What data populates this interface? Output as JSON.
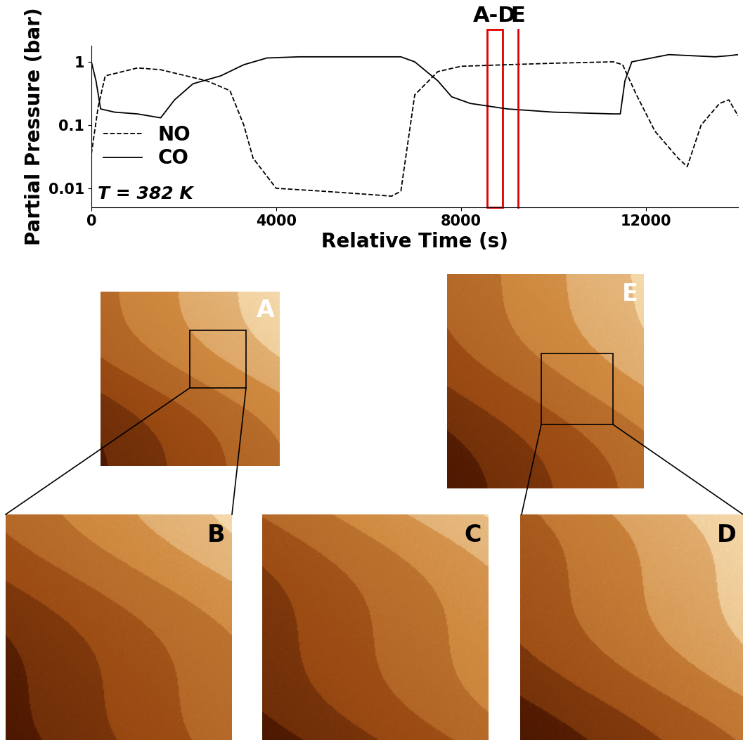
{
  "chart_data": {
    "type": "line",
    "xlabel": "Relative Time (s)",
    "ylabel": "Partial Pressure (bar)",
    "log": "y",
    "xlim": [
      0,
      14000
    ],
    "xticks": [
      0,
      4000,
      8000,
      12000
    ],
    "ylim": [
      0.005,
      1.8
    ],
    "yticks": [
      0.01,
      0.1,
      1
    ],
    "legend": "lower left",
    "series": [
      {
        "name": "NO",
        "color": "#000000",
        "line_style": "dashed",
        "x": [
          0,
          150,
          300,
          1000,
          1500,
          2500,
          3000,
          3300,
          3500,
          4000,
          5000,
          6000,
          6500,
          6700,
          7000,
          7500,
          8000,
          9000,
          10000,
          11300,
          11500,
          11800,
          12200,
          12700,
          12900,
          13200,
          13600,
          13800,
          14000
        ],
        "values": [
          0.035,
          0.2,
          0.6,
          0.8,
          0.75,
          0.5,
          0.35,
          0.1,
          0.03,
          0.01,
          0.009,
          0.008,
          0.0075,
          0.009,
          0.3,
          0.7,
          0.85,
          0.9,
          0.95,
          1.0,
          0.9,
          0.3,
          0.08,
          0.03,
          0.022,
          0.1,
          0.22,
          0.25,
          0.14
        ]
      },
      {
        "name": "CO",
        "color": "#000000",
        "line_style": "solid",
        "x": [
          0,
          100,
          200,
          500,
          1000,
          1500,
          1800,
          2200,
          2800,
          3300,
          3800,
          4500,
          6700,
          7000,
          7500,
          7800,
          8200,
          9000,
          10000,
          11300,
          11450,
          11550,
          11700,
          12500,
          13500,
          13800,
          14000
        ],
        "values": [
          1.0,
          0.5,
          0.18,
          0.16,
          0.15,
          0.13,
          0.25,
          0.45,
          0.6,
          0.9,
          1.15,
          1.2,
          1.2,
          1.0,
          0.5,
          0.28,
          0.22,
          0.18,
          0.16,
          0.15,
          0.15,
          0.5,
          1.0,
          1.3,
          1.2,
          1.25,
          1.3
        ]
      }
    ],
    "annotations": [
      {
        "text": "T = 382 K"
      },
      {
        "text": "A-D",
        "x": [
          8570,
          8900
        ],
        "color": "#e00000"
      },
      {
        "text": "E",
        "x": 9230,
        "color": "#e00000"
      }
    ]
  },
  "panels": [
    "A",
    "B",
    "C",
    "D",
    "E"
  ]
}
